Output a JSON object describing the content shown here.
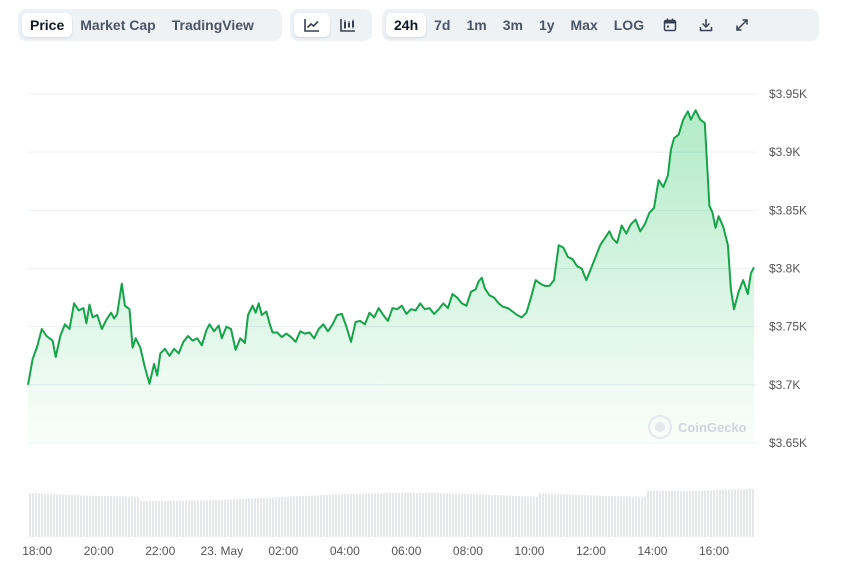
{
  "toolbar": {
    "data_tabs": [
      {
        "label": "Price",
        "active": true
      },
      {
        "label": "Market Cap",
        "active": false
      },
      {
        "label": "TradingView",
        "active": false
      }
    ],
    "chart_type_icons": [
      {
        "icon": "line-chart-icon",
        "active": true
      },
      {
        "icon": "candlestick-chart-icon",
        "active": false
      }
    ],
    "ranges": [
      {
        "label": "24h",
        "active": true
      },
      {
        "label": "7d",
        "active": false
      },
      {
        "label": "1m",
        "active": false
      },
      {
        "label": "3m",
        "active": false
      },
      {
        "label": "1y",
        "active": false
      },
      {
        "label": "Max",
        "active": false
      },
      {
        "label": "LOG",
        "active": false
      }
    ],
    "tool_icons": [
      "calendar-icon",
      "download-icon",
      "expand-icon"
    ]
  },
  "watermark": {
    "label": "CoinGecko"
  },
  "colors": {
    "line": "#16a34a",
    "fill": "#22c55e",
    "grid": "#eceff3",
    "volume": "#e5e7eb"
  },
  "chart_data": {
    "type": "area",
    "x_tick_labels": [
      "18:00",
      "20:00",
      "22:00",
      "23. May",
      "02:00",
      "04:00",
      "06:00",
      "08:00",
      "10:00",
      "12:00",
      "14:00",
      "16:00"
    ],
    "x_tick_hours": [
      0,
      2,
      4,
      6,
      8,
      10,
      12,
      14,
      16,
      18,
      20,
      22
    ],
    "x_range_hours": [
      -0.3,
      23.3
    ],
    "y_tick_labels": [
      "$3.65K",
      "$3.7K",
      "$3.75K",
      "$3.8K",
      "$3.85K",
      "$3.9K",
      "$3.95K"
    ],
    "y_tick_values": [
      3650,
      3700,
      3750,
      3800,
      3850,
      3900,
      3950
    ],
    "ylim": [
      3650,
      3950
    ],
    "grid": true,
    "series": [
      {
        "points": [
          [
            -0.3,
            3700
          ],
          [
            -0.15,
            3722
          ],
          [
            0.0,
            3733
          ],
          [
            0.15,
            3748
          ],
          [
            0.3,
            3742
          ],
          [
            0.5,
            3738
          ],
          [
            0.6,
            3724
          ],
          [
            0.75,
            3742
          ],
          [
            0.9,
            3752
          ],
          [
            1.05,
            3748
          ],
          [
            1.2,
            3770
          ],
          [
            1.35,
            3764
          ],
          [
            1.5,
            3766
          ],
          [
            1.6,
            3753
          ],
          [
            1.7,
            3769
          ],
          [
            1.8,
            3758
          ],
          [
            1.95,
            3760
          ],
          [
            2.1,
            3748
          ],
          [
            2.25,
            3756
          ],
          [
            2.4,
            3762
          ],
          [
            2.5,
            3757
          ],
          [
            2.6,
            3761
          ],
          [
            2.75,
            3787
          ],
          [
            2.85,
            3768
          ],
          [
            3.0,
            3765
          ],
          [
            3.1,
            3732
          ],
          [
            3.2,
            3740
          ],
          [
            3.35,
            3732
          ],
          [
            3.5,
            3715
          ],
          [
            3.65,
            3701
          ],
          [
            3.8,
            3718
          ],
          [
            3.9,
            3708
          ],
          [
            4.0,
            3727
          ],
          [
            4.15,
            3731
          ],
          [
            4.3,
            3725
          ],
          [
            4.45,
            3731
          ],
          [
            4.6,
            3727
          ],
          [
            4.75,
            3737
          ],
          [
            4.9,
            3742
          ],
          [
            5.05,
            3738
          ],
          [
            5.2,
            3740
          ],
          [
            5.35,
            3734
          ],
          [
            5.5,
            3747
          ],
          [
            5.6,
            3752
          ],
          [
            5.75,
            3746
          ],
          [
            5.9,
            3751
          ],
          [
            6.0,
            3740
          ],
          [
            6.15,
            3750
          ],
          [
            6.3,
            3748
          ],
          [
            6.45,
            3730
          ],
          [
            6.6,
            3740
          ],
          [
            6.75,
            3736
          ],
          [
            6.85,
            3760
          ],
          [
            7.0,
            3768
          ],
          [
            7.1,
            3762
          ],
          [
            7.2,
            3770
          ],
          [
            7.3,
            3760
          ],
          [
            7.45,
            3763
          ],
          [
            7.55,
            3753
          ],
          [
            7.65,
            3745
          ],
          [
            7.8,
            3745
          ],
          [
            7.95,
            3741
          ],
          [
            8.1,
            3744
          ],
          [
            8.25,
            3741
          ],
          [
            8.4,
            3737
          ],
          [
            8.55,
            3746
          ],
          [
            8.7,
            3744
          ],
          [
            8.85,
            3745
          ],
          [
            9.0,
            3740
          ],
          [
            9.15,
            3748
          ],
          [
            9.3,
            3752
          ],
          [
            9.45,
            3746
          ],
          [
            9.6,
            3752
          ],
          [
            9.75,
            3760
          ],
          [
            9.9,
            3761
          ],
          [
            10.05,
            3750
          ],
          [
            10.2,
            3737
          ],
          [
            10.35,
            3754
          ],
          [
            10.5,
            3755
          ],
          [
            10.65,
            3752
          ],
          [
            10.8,
            3762
          ],
          [
            10.95,
            3758
          ],
          [
            11.1,
            3766
          ],
          [
            11.25,
            3760
          ],
          [
            11.4,
            3755
          ],
          [
            11.55,
            3766
          ],
          [
            11.7,
            3765
          ],
          [
            11.85,
            3768
          ],
          [
            12.0,
            3761
          ],
          [
            12.15,
            3765
          ],
          [
            12.3,
            3764
          ],
          [
            12.45,
            3770
          ],
          [
            12.6,
            3765
          ],
          [
            12.75,
            3766
          ],
          [
            12.9,
            3761
          ],
          [
            13.05,
            3765
          ],
          [
            13.2,
            3770
          ],
          [
            13.35,
            3766
          ],
          [
            13.5,
            3778
          ],
          [
            13.65,
            3775
          ],
          [
            13.8,
            3770
          ],
          [
            13.95,
            3768
          ],
          [
            14.1,
            3780
          ],
          [
            14.25,
            3782
          ],
          [
            14.35,
            3789
          ],
          [
            14.45,
            3792
          ],
          [
            14.55,
            3783
          ],
          [
            14.7,
            3777
          ],
          [
            14.85,
            3775
          ],
          [
            15.0,
            3770
          ],
          [
            15.15,
            3767
          ],
          [
            15.3,
            3766
          ],
          [
            15.45,
            3763
          ],
          [
            15.6,
            3760
          ],
          [
            15.75,
            3758
          ],
          [
            15.9,
            3762
          ],
          [
            16.05,
            3775
          ],
          [
            16.2,
            3790
          ],
          [
            16.35,
            3787
          ],
          [
            16.5,
            3785
          ],
          [
            16.65,
            3785
          ],
          [
            16.8,
            3790
          ],
          [
            16.95,
            3820
          ],
          [
            17.1,
            3818
          ],
          [
            17.25,
            3810
          ],
          [
            17.4,
            3808
          ],
          [
            17.55,
            3802
          ],
          [
            17.7,
            3800
          ],
          [
            17.85,
            3790
          ],
          [
            18.0,
            3800
          ],
          [
            18.15,
            3810
          ],
          [
            18.3,
            3820
          ],
          [
            18.45,
            3826
          ],
          [
            18.6,
            3832
          ],
          [
            18.7,
            3826
          ],
          [
            18.85,
            3822
          ],
          [
            19.0,
            3837
          ],
          [
            19.15,
            3830
          ],
          [
            19.3,
            3838
          ],
          [
            19.45,
            3842
          ],
          [
            19.6,
            3832
          ],
          [
            19.75,
            3838
          ],
          [
            19.9,
            3848
          ],
          [
            20.05,
            3852
          ],
          [
            20.2,
            3876
          ],
          [
            20.35,
            3870
          ],
          [
            20.5,
            3880
          ],
          [
            20.6,
            3902
          ],
          [
            20.7,
            3912
          ],
          [
            20.85,
            3915
          ],
          [
            21.0,
            3928
          ],
          [
            21.15,
            3935
          ],
          [
            21.25,
            3928
          ],
          [
            21.4,
            3936
          ],
          [
            21.55,
            3928
          ],
          [
            21.7,
            3925
          ],
          [
            21.85,
            3854
          ],
          [
            21.95,
            3848
          ],
          [
            22.05,
            3835
          ],
          [
            22.15,
            3845
          ],
          [
            22.3,
            3836
          ],
          [
            22.45,
            3820
          ],
          [
            22.55,
            3782
          ],
          [
            22.65,
            3765
          ],
          [
            22.8,
            3780
          ],
          [
            22.95,
            3790
          ],
          [
            23.1,
            3778
          ],
          [
            23.2,
            3796
          ],
          [
            23.3,
            3801
          ]
        ]
      }
    ]
  }
}
